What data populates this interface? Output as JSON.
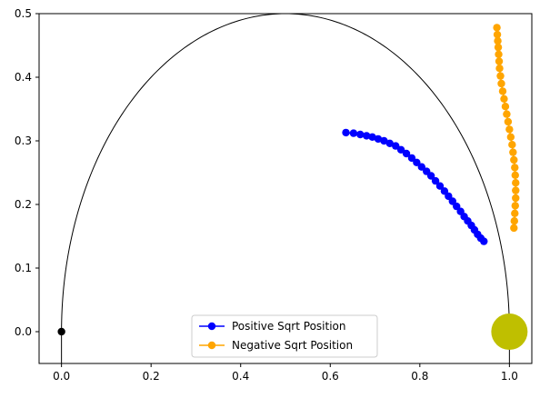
{
  "chart_data": {
    "type": "line",
    "xlim": [
      -0.05,
      1.05
    ],
    "ylim": [
      -0.05,
      0.5
    ],
    "xticks": [
      0.0,
      0.2,
      0.4,
      0.6,
      0.8,
      1.0
    ],
    "xtick_labels": [
      "0.0",
      "0.2",
      "0.4",
      "0.6",
      "0.8",
      "1.0"
    ],
    "yticks": [
      0.0,
      0.1,
      0.2,
      0.3,
      0.4,
      0.5
    ],
    "ytick_labels": [
      "0.0",
      "0.1",
      "0.2",
      "0.3",
      "0.4",
      "0.5"
    ],
    "grid": false,
    "legend_position": "lower-center",
    "boundary_curve": {
      "shape": "half-ellipse",
      "center_x": 0.5,
      "center_y": 0.0,
      "radius_x": 0.5,
      "radius_y": 0.5,
      "color": "#000000"
    },
    "markers": [
      {
        "x": 0.0,
        "y": 0.0,
        "color": "#000000",
        "size": "small"
      },
      {
        "x": 1.0,
        "y": 0.0,
        "color": "#bfbf00",
        "size": "large"
      }
    ],
    "series": [
      {
        "name": "Positive Sqrt Position",
        "color": "#0000ff",
        "x": [
          0.635,
          0.652,
          0.667,
          0.681,
          0.694,
          0.707,
          0.72,
          0.733,
          0.746,
          0.758,
          0.77,
          0.782,
          0.793,
          0.804,
          0.815,
          0.825,
          0.835,
          0.845,
          0.855,
          0.864,
          0.873,
          0.882,
          0.891,
          0.899,
          0.907,
          0.915,
          0.922,
          0.929,
          0.936,
          0.943
        ],
        "y": [
          0.313,
          0.312,
          0.31,
          0.308,
          0.306,
          0.303,
          0.3,
          0.296,
          0.292,
          0.286,
          0.28,
          0.273,
          0.266,
          0.259,
          0.252,
          0.245,
          0.237,
          0.229,
          0.221,
          0.213,
          0.205,
          0.197,
          0.189,
          0.181,
          0.174,
          0.167,
          0.16,
          0.153,
          0.147,
          0.142
        ]
      },
      {
        "name": "Negative Sqrt Position",
        "color": "#ffa500",
        "x": [
          0.972,
          0.973,
          0.974,
          0.975,
          0.976,
          0.977,
          0.978,
          0.98,
          0.982,
          0.985,
          0.988,
          0.991,
          0.994,
          0.997,
          1.0,
          1.003,
          1.006,
          1.008,
          1.01,
          1.012,
          1.013,
          1.014,
          1.014,
          1.014,
          1.013,
          1.012,
          1.011,
          1.01
        ],
        "y": [
          0.478,
          0.467,
          0.457,
          0.447,
          0.436,
          0.425,
          0.414,
          0.402,
          0.39,
          0.378,
          0.366,
          0.354,
          0.342,
          0.33,
          0.318,
          0.306,
          0.294,
          0.282,
          0.27,
          0.258,
          0.246,
          0.234,
          0.222,
          0.21,
          0.198,
          0.186,
          0.174,
          0.163
        ]
      }
    ]
  }
}
